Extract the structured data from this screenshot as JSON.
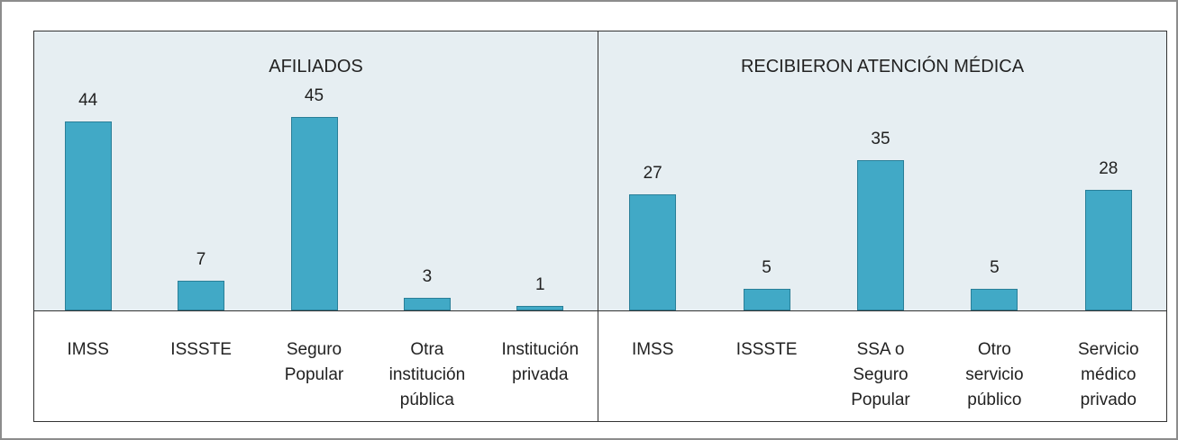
{
  "chart_data": [
    {
      "type": "bar",
      "title": "AFILIADOS",
      "categories": [
        "IMSS",
        "ISSSTE",
        "Seguro Popular",
        "Otra institución pública",
        "Institución privada"
      ],
      "values": [
        44,
        7,
        45,
        3,
        1
      ],
      "color": "#41a9c6"
    },
    {
      "type": "bar",
      "title": "RECIBIERON ATENCIÓN MÉDICA",
      "categories": [
        "IMSS",
        "ISSSTE",
        "SSA o Seguro Popular",
        "Otro servicio público",
        "Servicio médico privado"
      ],
      "values": [
        27,
        5,
        35,
        5,
        28
      ],
      "color": "#41a9c6"
    }
  ]
}
